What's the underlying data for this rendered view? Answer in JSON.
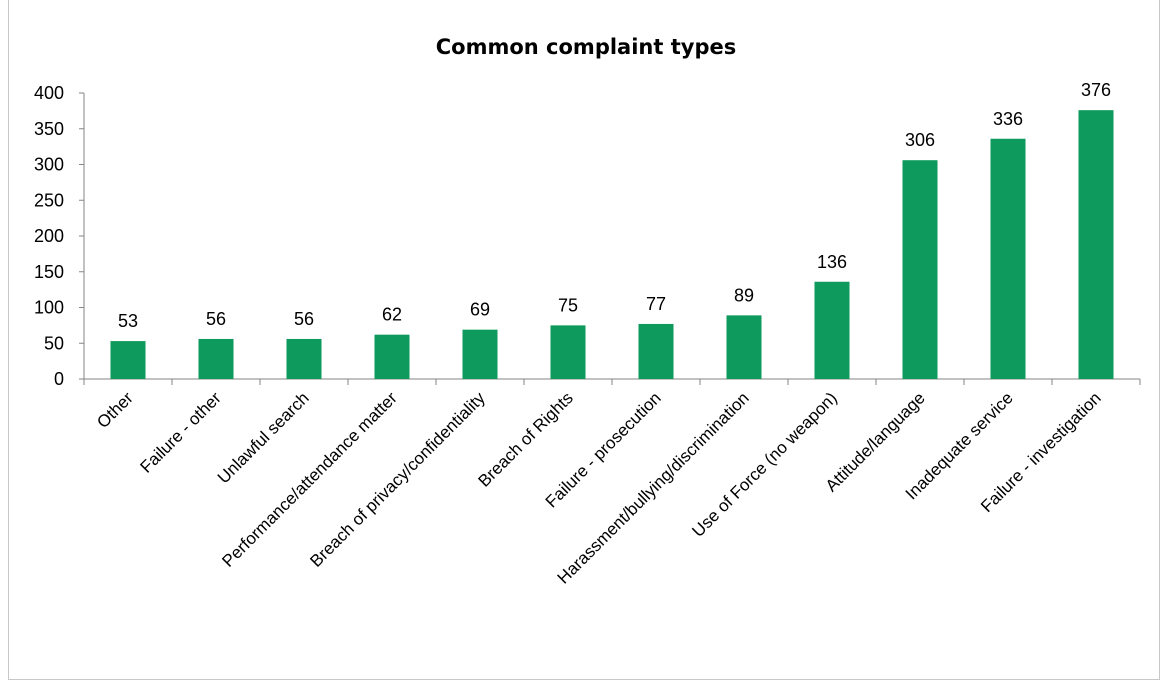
{
  "chart_data": {
    "type": "bar",
    "title": "Common complaint types",
    "xlabel": "",
    "ylabel": "",
    "categories": [
      "Other",
      "Failure - other",
      "Unlawful search",
      "Performance/attendance matter",
      "Breach of privacy/confidentiality",
      "Breach of Rights",
      "Failure - prosecution",
      "Harassment/bullying/discrimination",
      "Use of Force (no weapon)",
      "Attitude/language",
      "Inadequate service",
      "Failure - investigation"
    ],
    "values": [
      53,
      56,
      56,
      62,
      69,
      75,
      77,
      89,
      136,
      306,
      336,
      376
    ],
    "data_labels": [
      "53",
      "56",
      "56",
      "62",
      "69",
      "75",
      "77",
      "89",
      "136",
      "306",
      "336",
      "376"
    ],
    "y_ticks": [
      "0",
      "50",
      "100",
      "150",
      "200",
      "250",
      "300",
      "350",
      "400"
    ],
    "ylim": [
      0,
      400
    ],
    "grid": false,
    "legend": "none",
    "bar_color": "#0e9a5c"
  }
}
